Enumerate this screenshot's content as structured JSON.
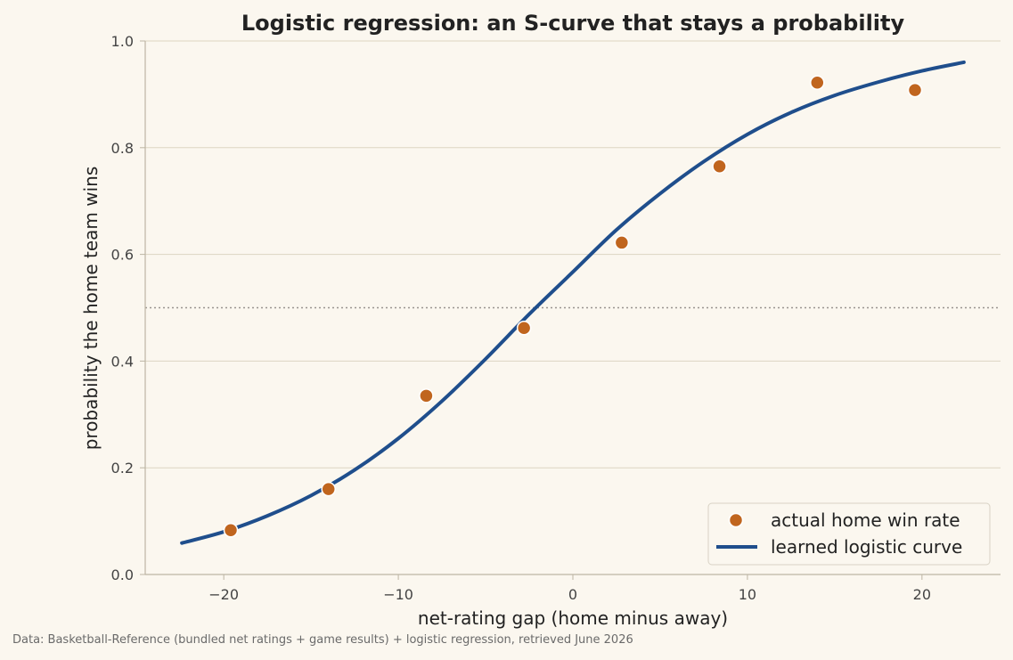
{
  "chart_data": {
    "type": "scatter",
    "title": "Logistic regression: an S-curve that stays a probability",
    "xlabel": "net-rating gap (home minus away)",
    "ylabel": "probability the home team wins",
    "xlim": [
      -24.5,
      24.5
    ],
    "ylim": [
      0.0,
      1.0
    ],
    "x_ticks": [
      -20,
      -10,
      0,
      10,
      20
    ],
    "x_tick_labels": [
      "−20",
      "−10",
      "0",
      "10",
      "20"
    ],
    "y_ticks": [
      0.0,
      0.2,
      0.4,
      0.6,
      0.8,
      1.0
    ],
    "y_tick_labels": [
      "0.0",
      "0.2",
      "0.4",
      "0.6",
      "0.8",
      "1.0"
    ],
    "grid": "horizontal",
    "reference_line": {
      "y": 0.5,
      "style": "dotted"
    },
    "series": [
      {
        "name": "actual home win rate",
        "kind": "points",
        "color": "#c0651e",
        "x": [
          -19.6,
          -14.0,
          -8.4,
          -2.8,
          2.8,
          8.4,
          14.0,
          19.6
        ],
        "y": [
          0.083,
          0.16,
          0.335,
          0.462,
          0.622,
          0.765,
          0.922,
          0.908
        ]
      },
      {
        "name": "learned logistic curve",
        "kind": "line",
        "color": "#1f4e8c",
        "x": [
          -22.4,
          -20,
          -17.5,
          -15,
          -12.5,
          -10,
          -7.5,
          -5,
          -2.5,
          0,
          2.5,
          5,
          7.5,
          10,
          12.5,
          15,
          17.5,
          20,
          22.4
        ],
        "y": [
          0.059,
          0.08,
          0.11,
          0.148,
          0.196,
          0.255,
          0.325,
          0.404,
          0.488,
          0.567,
          0.646,
          0.714,
          0.774,
          0.825,
          0.866,
          0.898,
          0.923,
          0.944,
          0.96
        ]
      }
    ],
    "legend": {
      "position": "lower-right"
    }
  },
  "footer": {
    "source": "Data: Basketball-Reference (bundled net ratings + game results) + logistic regression, retrieved June 2026"
  }
}
